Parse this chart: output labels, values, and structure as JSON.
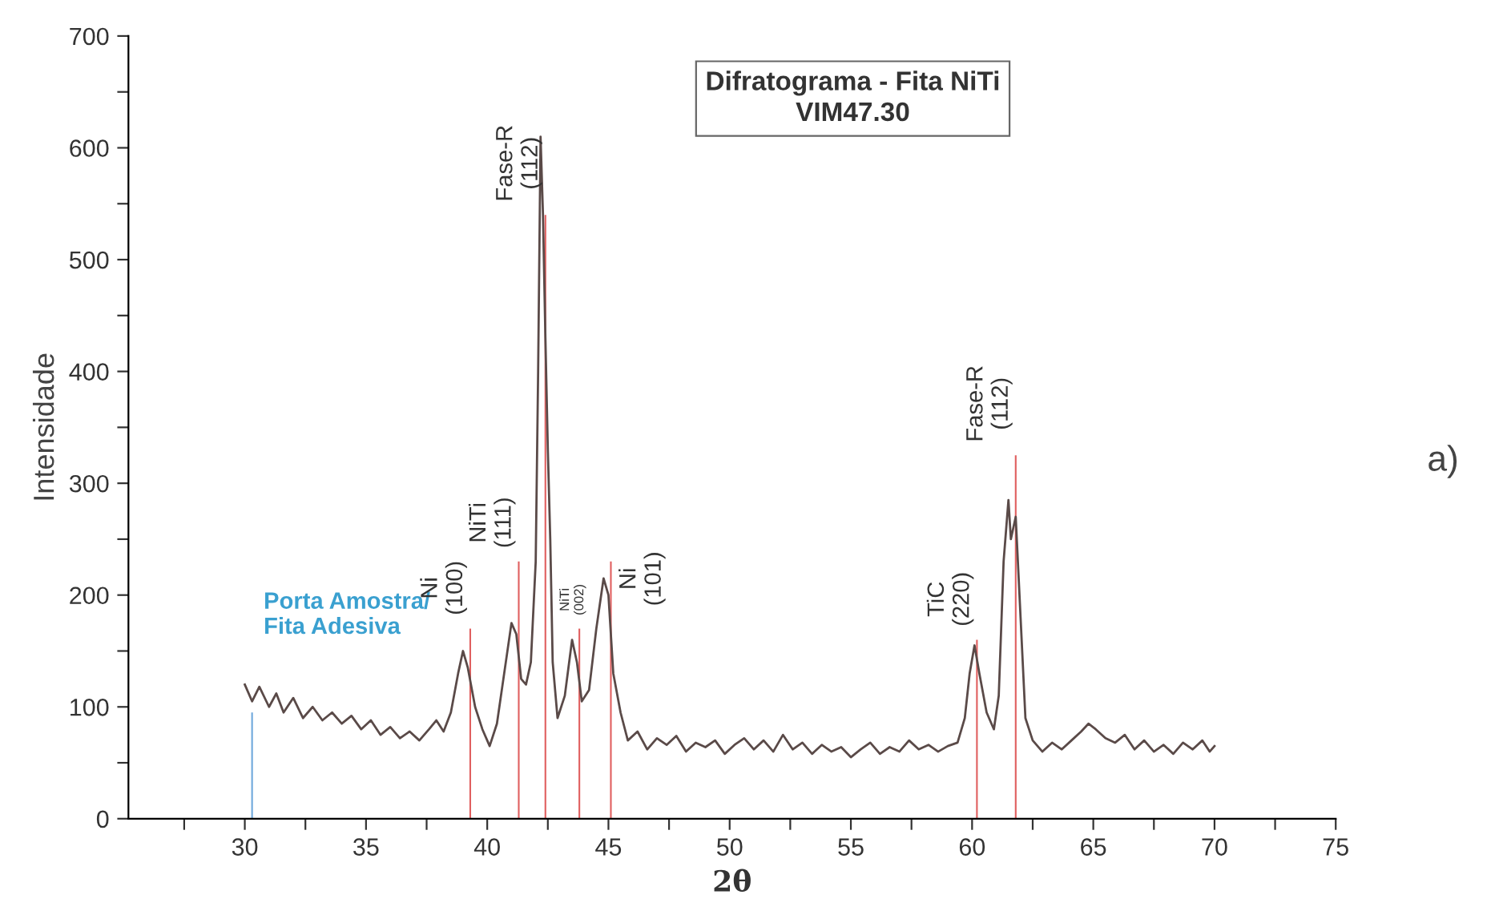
{
  "chart_data": {
    "type": "line",
    "title": "Difratograma - Fita NiTi\nVIM47.30",
    "xlabel": "2θ",
    "ylabel": "Intensidade",
    "xlim": [
      25.2,
      75
    ],
    "ylim": [
      0,
      700
    ],
    "xticks": [
      {
        "value": 27.5,
        "label": null
      },
      30,
      {
        "value": 32.5,
        "label": null
      },
      35,
      {
        "value": 37.5,
        "label": null
      },
      40,
      {
        "value": 42.5,
        "label": null
      },
      45,
      {
        "value": 47.5,
        "label": null
      },
      50,
      {
        "value": 52.5,
        "label": null
      },
      55,
      {
        "value": 57.5,
        "label": null
      },
      60,
      {
        "value": 62.5,
        "label": null
      },
      65,
      {
        "value": 67.5,
        "label": null
      },
      70,
      {
        "value": 72.5,
        "label": null
      },
      75
    ],
    "yticks": [
      0,
      {
        "value": 50,
        "label": null
      },
      100,
      {
        "value": 150,
        "label": null
      },
      200,
      {
        "value": 250,
        "label": null
      },
      300,
      {
        "value": 350,
        "label": null
      },
      400,
      {
        "value": 450,
        "label": null
      },
      500,
      {
        "value": 550,
        "label": null
      },
      600,
      {
        "value": 650,
        "label": null
      },
      700
    ],
    "grid": false,
    "legend": false,
    "series": [
      {
        "type": "bar",
        "colors": [
          "#6fa8dc",
          "#e06060",
          "#e06060",
          "#e06060",
          "#e06060",
          "#e06060",
          "#e06060",
          "#e06060"
        ],
        "x": [
          30.3,
          39.3,
          41.3,
          42.4,
          43.8,
          45.1,
          60.2,
          61.8
        ],
        "values": [
          95,
          170,
          230,
          540,
          170,
          230,
          160,
          325
        ]
      },
      {
        "color": "#5a4a48",
        "x": [
          30,
          30.3,
          30.6,
          31,
          31.3,
          31.6,
          32,
          32.4,
          32.8,
          33.2,
          33.6,
          34,
          34.4,
          34.8,
          35.2,
          35.6,
          36,
          36.4,
          36.8,
          37.2,
          37.6,
          37.9,
          38.2,
          38.5,
          38.8,
          39,
          39.2,
          39.5,
          39.8,
          40.1,
          40.4,
          40.7,
          41,
          41.2,
          41.4,
          41.6,
          41.8,
          42,
          42.1,
          42.2,
          42.3,
          42.4,
          42.5,
          42.6,
          42.7,
          42.9,
          43.2,
          43.5,
          43.7,
          43.9,
          44.2,
          44.5,
          44.8,
          45,
          45.2,
          45.5,
          45.8,
          46.2,
          46.6,
          47,
          47.4,
          47.8,
          48.2,
          48.6,
          49,
          49.4,
          49.8,
          50.2,
          50.6,
          51,
          51.4,
          51.8,
          52.2,
          52.6,
          53,
          53.4,
          53.8,
          54.2,
          54.6,
          55,
          55.4,
          55.8,
          56.2,
          56.6,
          57,
          57.4,
          57.8,
          58.2,
          58.6,
          59,
          59.4,
          59.7,
          59.9,
          60.1,
          60.3,
          60.6,
          60.9,
          61.1,
          61.3,
          61.5,
          61.6,
          61.8,
          62,
          62.2,
          62.5,
          62.9,
          63.3,
          63.7,
          64.1,
          64.5,
          64.8,
          65.1,
          65.5,
          65.9,
          66.3,
          66.7,
          67.1,
          67.5,
          67.9,
          68.3,
          68.7,
          69.1,
          69.5,
          69.8,
          70
        ],
        "values": [
          120,
          105,
          118,
          100,
          112,
          95,
          108,
          90,
          100,
          88,
          95,
          85,
          92,
          80,
          88,
          75,
          82,
          72,
          78,
          70,
          80,
          88,
          78,
          95,
          130,
          150,
          135,
          100,
          80,
          65,
          85,
          130,
          175,
          165,
          125,
          120,
          140,
          230,
          400,
          610,
          540,
          430,
          330,
          250,
          140,
          90,
          110,
          160,
          140,
          105,
          115,
          170,
          215,
          200,
          130,
          95,
          70,
          78,
          62,
          72,
          66,
          74,
          60,
          68,
          64,
          70,
          58,
          66,
          72,
          62,
          70,
          60,
          75,
          62,
          68,
          58,
          66,
          60,
          64,
          55,
          62,
          68,
          58,
          64,
          60,
          70,
          62,
          66,
          60,
          65,
          68,
          90,
          130,
          155,
          130,
          95,
          80,
          110,
          230,
          285,
          250,
          270,
          180,
          90,
          70,
          60,
          68,
          62,
          70,
          78,
          85,
          80,
          72,
          68,
          75,
          62,
          70,
          60,
          66,
          58,
          68,
          62,
          70,
          60,
          65
        ]
      }
    ],
    "annotations": [
      "Porta Amostra/\nFita Adesiva",
      {
        "text": "Ni\n(100)",
        "x": 39.3,
        "y": 170
      },
      {
        "text": "NiTi\n(111)",
        "x": 41.3,
        "y": 230
      },
      {
        "text": "Fase-R\n(112)",
        "x": 42.4,
        "y": 540
      },
      {
        "text": "NiTi\n(002)",
        "x": 43.8,
        "y": 170
      },
      {
        "text": "Ni\n(101)",
        "x": 45.1,
        "y": 230
      },
      {
        "text": "TiC\n(220)",
        "x": 60.2,
        "y": 160
      },
      {
        "text": "Fase-R\n(112)",
        "x": 61.8,
        "y": 325
      },
      "a)"
    ]
  }
}
